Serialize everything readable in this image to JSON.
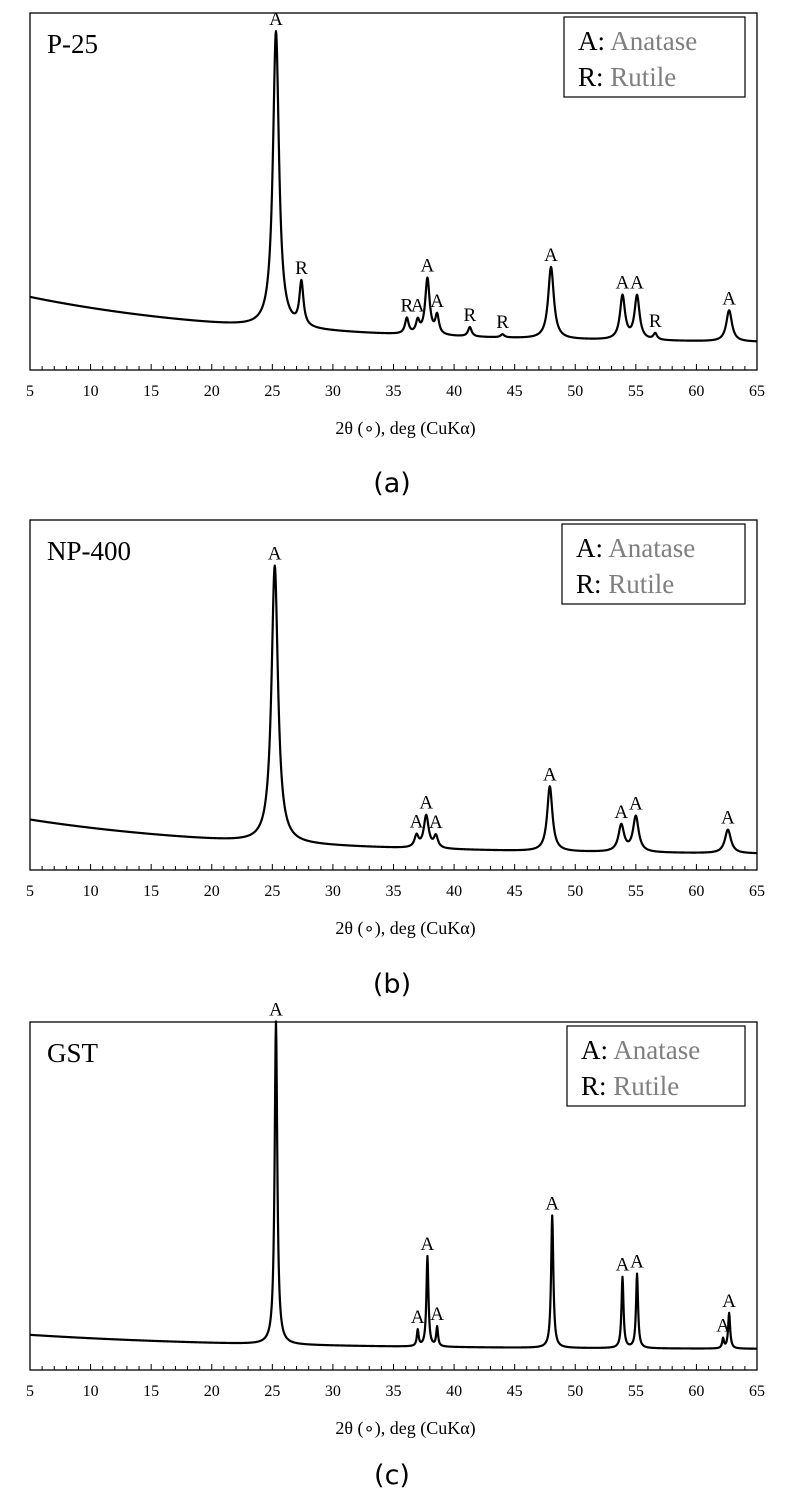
{
  "chart_data": [
    {
      "type": "line",
      "panel": "(a)",
      "sample": "P-25",
      "xlabel": "2θ (∘), deg (CuKα)",
      "xlim": [
        5,
        65
      ],
      "xticks": [
        5,
        10,
        15,
        20,
        25,
        30,
        35,
        40,
        45,
        50,
        55,
        60,
        65
      ],
      "y_axis_visible": false,
      "legend": [
        {
          "key": "A",
          "sep": ": ",
          "name": "Anatase"
        },
        {
          "key": "R",
          "sep": ": ",
          "name": "Rutile"
        }
      ],
      "legend_placement": "top-right",
      "background_start": 0.17,
      "background_end": 0.02,
      "peaks": [
        {
          "x": 25.3,
          "height": 0.95,
          "width": 0.3,
          "label": "A"
        },
        {
          "x": 27.4,
          "height": 0.14,
          "width": 0.2,
          "label": "R"
        },
        {
          "x": 36.1,
          "height": 0.05,
          "width": 0.18,
          "label": "R"
        },
        {
          "x": 37.0,
          "height": 0.04,
          "width": 0.18,
          "label": "A"
        },
        {
          "x": 37.8,
          "height": 0.18,
          "width": 0.22,
          "label": "A"
        },
        {
          "x": 38.6,
          "height": 0.06,
          "width": 0.18,
          "label": "A"
        },
        {
          "x": 41.3,
          "height": 0.03,
          "width": 0.18,
          "label": "R"
        },
        {
          "x": 44.0,
          "height": 0.01,
          "width": 0.18,
          "label": "R"
        },
        {
          "x": 48.0,
          "height": 0.23,
          "width": 0.28,
          "label": "A"
        },
        {
          "x": 53.9,
          "height": 0.14,
          "width": 0.25,
          "label": "A"
        },
        {
          "x": 55.1,
          "height": 0.14,
          "width": 0.25,
          "label": "A"
        },
        {
          "x": 56.6,
          "height": 0.02,
          "width": 0.18,
          "label": "R"
        },
        {
          "x": 62.7,
          "height": 0.1,
          "width": 0.28,
          "label": "A"
        }
      ]
    },
    {
      "type": "line",
      "panel": "(b)",
      "sample": "NP-400",
      "xlabel": "2θ (∘), deg (CuKα)",
      "xlim": [
        5,
        65
      ],
      "xticks": [
        5,
        10,
        15,
        20,
        25,
        30,
        35,
        40,
        45,
        50,
        55,
        60,
        65
      ],
      "y_axis_visible": false,
      "legend": [
        {
          "key": "A",
          "sep": ": ",
          "name": "Anatase"
        },
        {
          "key": "R",
          "sep": ": ",
          "name": "Rutile"
        }
      ],
      "legend_placement": "top-right",
      "background_start": 0.12,
      "background_end": 0.0,
      "peaks": [
        {
          "x": 25.2,
          "height": 0.94,
          "width": 0.32,
          "label": "A"
        },
        {
          "x": 36.9,
          "height": 0.04,
          "width": 0.2,
          "label": "A"
        },
        {
          "x": 37.7,
          "height": 0.11,
          "width": 0.24,
          "label": "A"
        },
        {
          "x": 38.5,
          "height": 0.04,
          "width": 0.2,
          "label": "A"
        },
        {
          "x": 47.9,
          "height": 0.22,
          "width": 0.26,
          "label": "A"
        },
        {
          "x": 53.8,
          "height": 0.09,
          "width": 0.28,
          "label": "A"
        },
        {
          "x": 55.0,
          "height": 0.12,
          "width": 0.28,
          "label": "A"
        },
        {
          "x": 62.6,
          "height": 0.08,
          "width": 0.3,
          "label": "A"
        }
      ]
    },
    {
      "type": "line",
      "panel": "(c)",
      "sample": "GST",
      "xlabel": "2θ (∘), deg (CuKα)",
      "xlim": [
        5,
        65
      ],
      "xticks": [
        5,
        10,
        15,
        20,
        25,
        30,
        35,
        40,
        45,
        50,
        55,
        60,
        65
      ],
      "y_axis_visible": false,
      "legend": [
        {
          "key": "A",
          "sep": ": ",
          "name": "Anatase"
        },
        {
          "key": "R",
          "sep": ": ",
          "name": "Rutile"
        }
      ],
      "legend_placement": "top-right",
      "background_start": 0.05,
      "background_end": 0.005,
      "peaks": [
        {
          "x": 25.3,
          "height": 1.0,
          "width": 0.13,
          "label": "A"
        },
        {
          "x": 37.0,
          "height": 0.05,
          "width": 0.09,
          "label": "A"
        },
        {
          "x": 37.8,
          "height": 0.28,
          "width": 0.1,
          "label": "A"
        },
        {
          "x": 38.6,
          "height": 0.06,
          "width": 0.09,
          "label": "A"
        },
        {
          "x": 48.1,
          "height": 0.41,
          "width": 0.11,
          "label": "A"
        },
        {
          "x": 53.9,
          "height": 0.22,
          "width": 0.1,
          "label": "A"
        },
        {
          "x": 55.1,
          "height": 0.23,
          "width": 0.1,
          "label": "A"
        },
        {
          "x": 62.2,
          "height": 0.03,
          "width": 0.09,
          "label": "A"
        },
        {
          "x": 62.7,
          "height": 0.11,
          "width": 0.1,
          "label": "A"
        }
      ]
    }
  ]
}
